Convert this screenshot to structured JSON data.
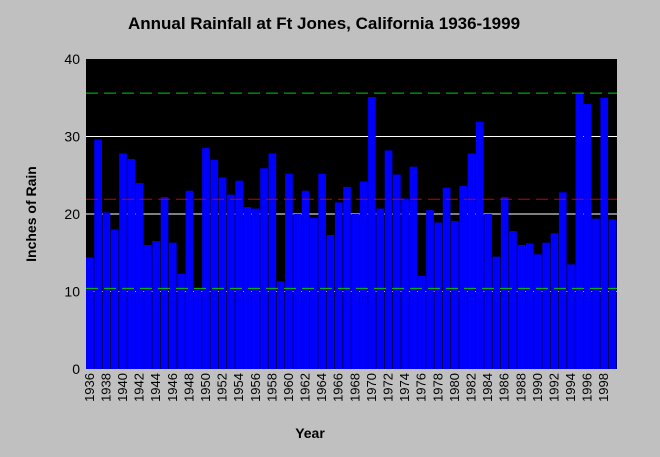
{
  "chart_data": {
    "type": "bar",
    "title": "Annual Rainfall at Ft Jones, California 1936-1999",
    "xlabel": "Year",
    "ylabel": "Inches of Rain",
    "ylim": [
      0,
      40
    ],
    "yticks": [
      0,
      10,
      20,
      30,
      40
    ],
    "grid": true,
    "categories": [
      1936,
      1937,
      1938,
      1939,
      1940,
      1941,
      1942,
      1943,
      1944,
      1945,
      1946,
      1947,
      1948,
      1949,
      1950,
      1951,
      1952,
      1953,
      1954,
      1955,
      1956,
      1957,
      1958,
      1959,
      1960,
      1961,
      1962,
      1963,
      1964,
      1965,
      1966,
      1967,
      1968,
      1969,
      1970,
      1971,
      1972,
      1973,
      1974,
      1975,
      1976,
      1977,
      1978,
      1979,
      1980,
      1981,
      1982,
      1983,
      1984,
      1985,
      1986,
      1987,
      1988,
      1989,
      1990,
      1991,
      1992,
      1993,
      1994,
      1995,
      1996,
      1997,
      1998,
      1999
    ],
    "xtick_labels": [
      "1936",
      "1938",
      "1940",
      "1942",
      "1944",
      "1946",
      "1948",
      "1950",
      "1952",
      "1954",
      "1956",
      "1958",
      "1960",
      "1962",
      "1964",
      "1966",
      "1968",
      "1970",
      "1972",
      "1974",
      "1976",
      "1978",
      "1980",
      "1982",
      "1984",
      "1986",
      "1988",
      "1990",
      "1992",
      "1994",
      "1996",
      "1998"
    ],
    "values": [
      14.4,
      29.6,
      20.2,
      18.0,
      27.8,
      27.1,
      24.0,
      16.0,
      16.5,
      22.2,
      16.3,
      12.3,
      23.0,
      10.3,
      28.5,
      27.0,
      24.7,
      22.5,
      24.3,
      20.9,
      20.7,
      25.9,
      27.8,
      11.3,
      25.2,
      20.0,
      23.0,
      19.5,
      25.2,
      17.3,
      21.5,
      23.5,
      20.0,
      24.2,
      35.1,
      20.7,
      28.2,
      25.1,
      22.0,
      26.1,
      12.0,
      20.5,
      18.9,
      23.4,
      19.1,
      23.6,
      27.8,
      31.9,
      20.0,
      14.5,
      22.2,
      17.8,
      16.0,
      16.2,
      14.8,
      16.3,
      17.5,
      22.8,
      13.5,
      35.5,
      34.2,
      19.4,
      35.0,
      19.3
    ],
    "reference_lines": [
      {
        "value": 35.6,
        "color": "#00cc00"
      },
      {
        "value": 21.9,
        "color": "#cc0000"
      },
      {
        "value": 10.4,
        "color": "#00cc00"
      }
    ],
    "bar_color": "#0000ff"
  }
}
